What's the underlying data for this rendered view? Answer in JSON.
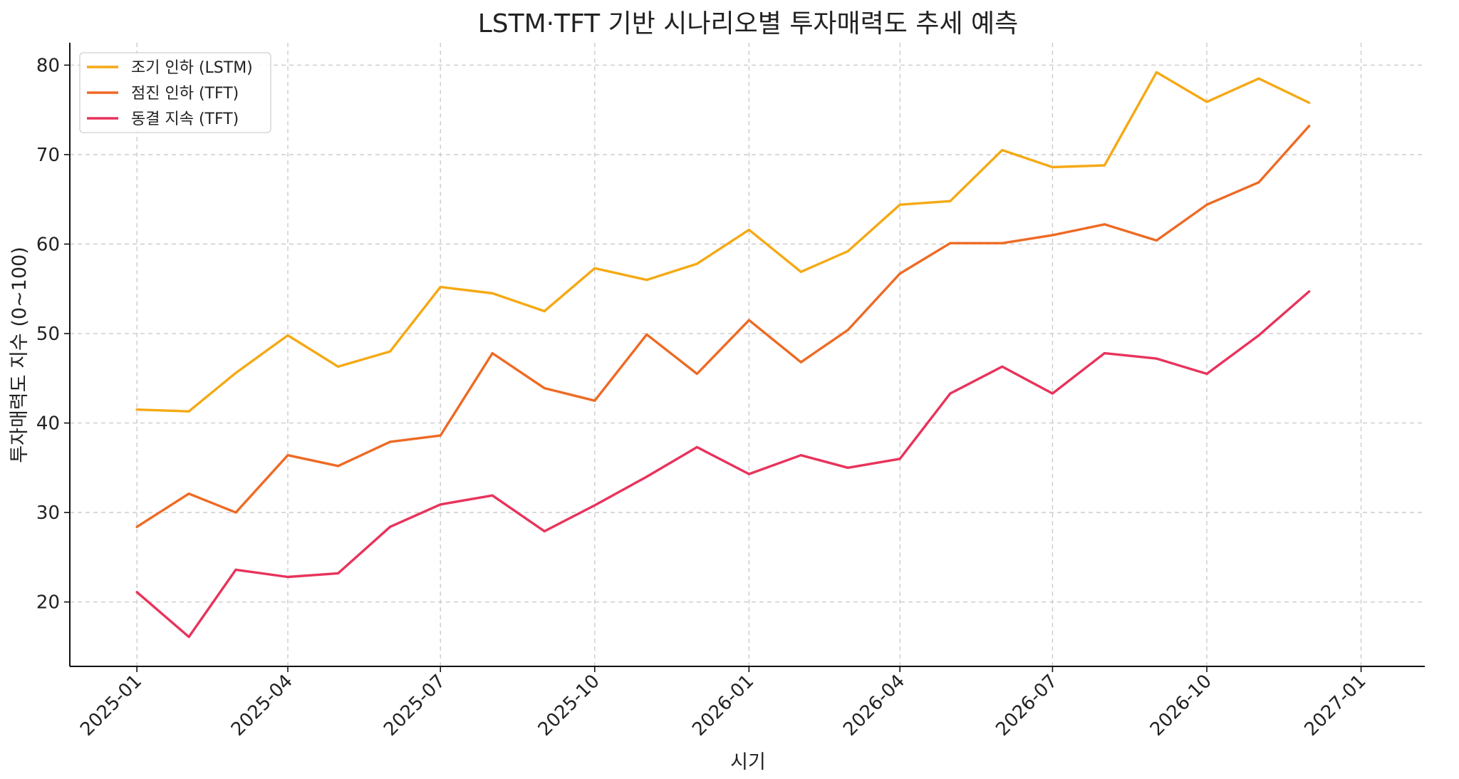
{
  "chart_data": {
    "type": "line",
    "title": "LSTM·TFT 기반 시나리오별 투자매력도 추세 예측",
    "xlabel": "시기",
    "ylabel": "투자매력도 지수 (0~100)",
    "x": [
      "2025-01",
      "2025-02",
      "2025-03",
      "2025-04",
      "2025-05",
      "2025-06",
      "2025-07",
      "2025-08",
      "2025-09",
      "2025-10",
      "2025-11",
      "2025-12",
      "2026-01",
      "2026-02",
      "2026-03",
      "2026-04",
      "2026-05",
      "2026-06",
      "2026-07",
      "2026-08",
      "2026-09",
      "2026-10",
      "2026-11",
      "2026-12"
    ],
    "x_ticks": [
      "2025-01",
      "2025-04",
      "2025-07",
      "2025-10",
      "2026-01",
      "2026-04",
      "2026-07",
      "2026-10",
      "2027-01"
    ],
    "y_ticks": [
      20,
      30,
      40,
      50,
      60,
      70,
      80
    ],
    "ylim": [
      12.8,
      82.5
    ],
    "xlim": [
      "2024-11-22",
      "2027-02-08"
    ],
    "grid": true,
    "legend_position": "top-left",
    "series": [
      {
        "name": "조기 인하 (LSTM)",
        "color": "#F5A914",
        "values": [
          41.5,
          41.3,
          45.6,
          49.8,
          46.3,
          48.0,
          55.2,
          54.5,
          52.5,
          57.3,
          56.0,
          57.8,
          61.6,
          56.9,
          59.2,
          64.4,
          64.8,
          70.5,
          68.6,
          68.8,
          79.2,
          75.9,
          78.5,
          75.8
        ]
      },
      {
        "name": "점진 인하 (TFT)",
        "color": "#EE6A24",
        "values": [
          28.4,
          32.1,
          30.0,
          36.4,
          35.2,
          37.9,
          38.6,
          47.8,
          43.9,
          42.5,
          49.9,
          45.5,
          51.5,
          46.8,
          50.4,
          56.7,
          60.1,
          60.1,
          61.0,
          62.2,
          60.4,
          64.4,
          66.9,
          73.2
        ]
      },
      {
        "name": "동결 지속 (TFT)",
        "color": "#E8335B",
        "values": [
          21.1,
          16.1,
          23.6,
          22.8,
          23.2,
          28.4,
          30.9,
          31.9,
          27.9,
          30.8,
          34.0,
          37.3,
          34.3,
          36.4,
          35.0,
          36.0,
          43.3,
          46.3,
          43.3,
          47.8,
          47.2,
          45.5,
          49.8,
          54.7
        ]
      }
    ]
  }
}
